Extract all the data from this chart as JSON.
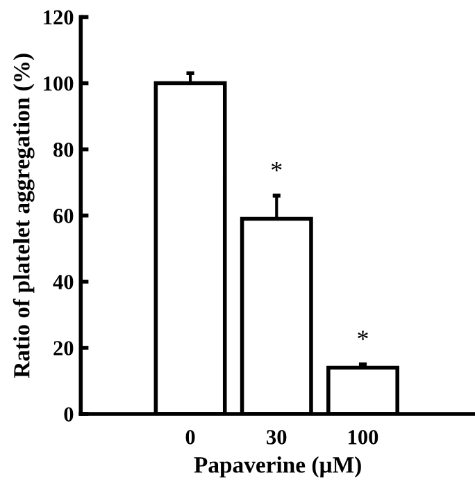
{
  "chart_data": {
    "type": "bar",
    "xlabel": "Papaverine (µM)",
    "ylabel": "Ratio of platelet aggregation (%)",
    "categories": [
      "0",
      "30",
      "100"
    ],
    "values": [
      100,
      59,
      14
    ],
    "errors": [
      3,
      7,
      1
    ],
    "color": "#ffffff",
    "ylim": [
      0,
      120
    ],
    "yticks": [
      0,
      20,
      40,
      60,
      80,
      100,
      120
    ],
    "grid": false,
    "annotations": [
      "*",
      "*"
    ]
  }
}
